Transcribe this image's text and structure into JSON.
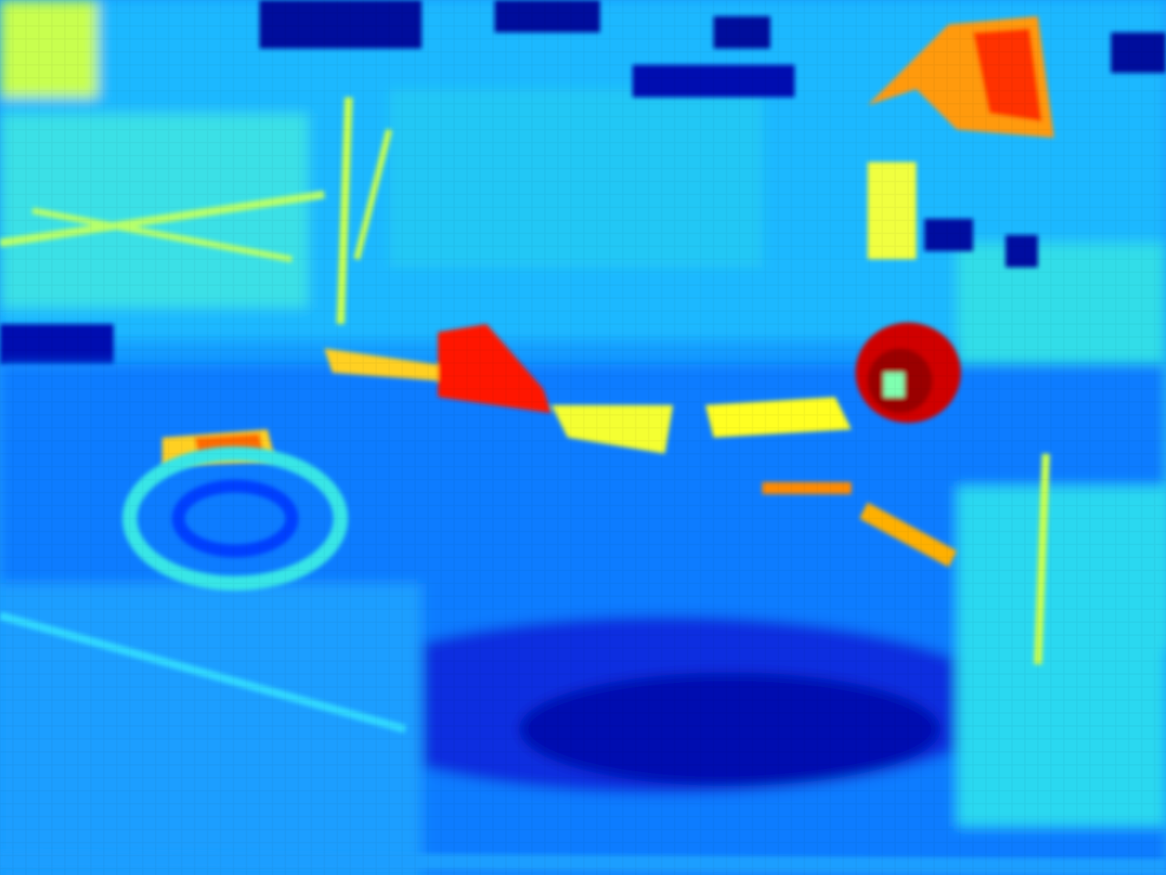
{
  "image": {
    "kind": "thermal-style false-color heatmap photograph",
    "colormap": [
      "#00008b",
      "#0000ff",
      "#0080ff",
      "#00e5ff",
      "#7fff7f",
      "#ffff00",
      "#ff8000",
      "#ff0000",
      "#8b0000"
    ],
    "dominant_colors": {
      "background": "#1aa0ff",
      "cool": "#0018c8",
      "mid": "#00e5ff",
      "warm": "#ffff00",
      "hot": "#ff2000"
    }
  }
}
